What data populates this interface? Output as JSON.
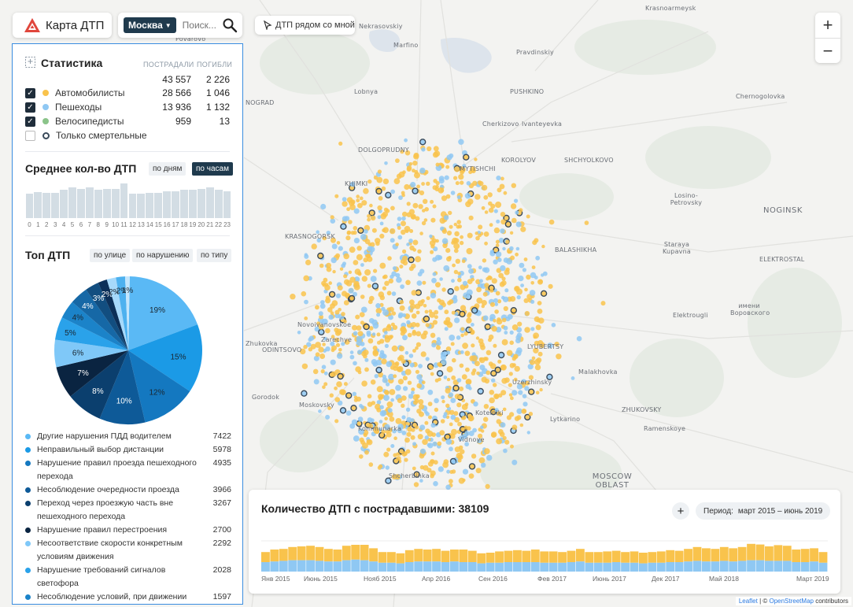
{
  "header": {
    "app_title": "Карта ДТП",
    "city": "Москва",
    "search_placeholder": "Поиск...",
    "nearby_label": "ДТП рядом со мной"
  },
  "zoom": {
    "in": "+",
    "out": "−"
  },
  "stats": {
    "title": "Статистика",
    "col_injured": "ПОСТРАДАЛИ",
    "col_killed": "ПОГИБЛИ",
    "total_injured": "43 557",
    "total_killed": "2 226",
    "rows": [
      {
        "label": "Автомобилисты",
        "injured": "28 566",
        "killed": "1 046",
        "color": "#f9c34c",
        "checked": true
      },
      {
        "label": "Пешеходы",
        "injured": "13 936",
        "killed": "1 132",
        "color": "#8fc8f3",
        "checked": true
      },
      {
        "label": "Велосипедисты",
        "injured": "959",
        "killed": "13",
        "color": "#8bc48a",
        "checked": true
      }
    ],
    "fatal_only": "Только смертельные"
  },
  "average": {
    "title": "Среднее кол-во ДТП",
    "by_days": "по дням",
    "by_hours": "по часам",
    "hours": [
      "0",
      "1",
      "2",
      "3",
      "4",
      "5",
      "6",
      "7",
      "8",
      "9",
      "10",
      "11",
      "12",
      "13",
      "14",
      "15",
      "16",
      "17",
      "18",
      "19",
      "20",
      "21",
      "22",
      "23"
    ],
    "values": [
      0.68,
      0.72,
      0.7,
      0.7,
      0.78,
      0.85,
      0.8,
      0.85,
      0.78,
      0.8,
      0.8,
      0.95,
      0.68,
      0.68,
      0.7,
      0.7,
      0.75,
      0.75,
      0.78,
      0.78,
      0.8,
      0.85,
      0.78,
      0.75
    ]
  },
  "top": {
    "title": "Топ ДТП",
    "by_street": "по улице",
    "by_violation": "по нарушению",
    "by_type": "по типу"
  },
  "chart_data": {
    "type": "pie",
    "slices": [
      {
        "label": "19%",
        "value": 19,
        "color": "#5ab9f5"
      },
      {
        "label": "15%",
        "value": 15,
        "color": "#1b9ae6"
      },
      {
        "label": "12%",
        "value": 12,
        "color": "#1478c0"
      },
      {
        "label": "10%",
        "value": 10,
        "color": "#0e5a98"
      },
      {
        "label": "8%",
        "value": 8,
        "color": "#0b3f6e"
      },
      {
        "label": "7%",
        "value": 7,
        "color": "#0a2441"
      },
      {
        "label": "6%",
        "value": 6,
        "color": "#7fc8f8"
      },
      {
        "label": "5%",
        "value": 5,
        "color": "#2aa2ea"
      },
      {
        "label": "4%",
        "value": 4,
        "color": "#1b83c9"
      },
      {
        "label": "4%",
        "value": 4,
        "color": "#1668a6"
      },
      {
        "label": "3%",
        "value": 3,
        "color": "#124e80"
      },
      {
        "label": "2%",
        "value": 2,
        "color": "#0c3059"
      },
      {
        "label": "2%",
        "value": 2,
        "color": "#a6d9fb"
      },
      {
        "label": "2%",
        "value": 2,
        "color": "#4db1ef"
      },
      {
        "label": "1%",
        "value": 1,
        "color": "#c3e6fd"
      }
    ]
  },
  "legend": [
    {
      "text": "Другие нарушения ПДД водителем",
      "value": "7422",
      "color": "#5ab9f5"
    },
    {
      "text": "Неправильный выбор дистанции",
      "value": "5978",
      "color": "#1b9ae6"
    },
    {
      "text": "Нарушение правил проезда пешеходного перехода",
      "value": "4935",
      "color": "#1478c0"
    },
    {
      "text": "Несоблюдение очередности проезда",
      "value": "3966",
      "color": "#0e5a98"
    },
    {
      "text": "Переход через проезжую часть вне пешеходного перехода",
      "value": "3267",
      "color": "#0b3f6e"
    },
    {
      "text": "Нарушение правил перестроения",
      "value": "2700",
      "color": "#0a2441"
    },
    {
      "text": "Несоответствие скорости конкретным условиям движения",
      "value": "2292",
      "color": "#7fc8f8"
    },
    {
      "text": "Нарушение требований сигналов светофора",
      "value": "2028",
      "color": "#2aa2ea"
    },
    {
      "text": "Несоблюдение условий, при движении",
      "value": "1597",
      "color": "#1b83c9"
    }
  ],
  "timeline": {
    "title": "Количество ДТП с пострадавшими: 38109",
    "plus": "+",
    "period_label": "Период:",
    "period_value": "март 2015 – июнь 2019",
    "ticks": [
      "Янв 2015",
      "Июнь 2015",
      "Нояб 2015",
      "Апр 2016",
      "Сен 2016",
      "Фев 2017",
      "Июнь 2017",
      "Дек 2017",
      "Май 2018",
      "Март 2019"
    ],
    "totals": [
      0.62,
      0.7,
      0.72,
      0.78,
      0.8,
      0.82,
      0.78,
      0.72,
      0.7,
      0.82,
      0.85,
      0.85,
      0.74,
      0.62,
      0.62,
      0.58,
      0.68,
      0.72,
      0.7,
      0.72,
      0.66,
      0.7,
      0.7,
      0.66,
      0.58,
      0.6,
      0.64,
      0.66,
      0.68,
      0.66,
      0.7,
      0.64,
      0.64,
      0.62,
      0.66,
      0.72,
      0.62,
      0.62,
      0.64,
      0.66,
      0.62,
      0.64,
      0.6,
      0.62,
      0.64,
      0.68,
      0.66,
      0.72,
      0.78,
      0.74,
      0.72,
      0.78,
      0.74,
      0.78,
      0.88,
      0.86,
      0.8,
      0.84,
      0.82,
      0.7,
      0.72,
      0.74,
      0.62
    ],
    "peds": [
      0.3,
      0.32,
      0.34,
      0.36,
      0.36,
      0.36,
      0.34,
      0.32,
      0.32,
      0.36,
      0.38,
      0.36,
      0.32,
      0.28,
      0.28,
      0.26,
      0.3,
      0.32,
      0.32,
      0.32,
      0.3,
      0.32,
      0.3,
      0.3,
      0.26,
      0.28,
      0.28,
      0.3,
      0.3,
      0.3,
      0.3,
      0.28,
      0.28,
      0.28,
      0.3,
      0.32,
      0.28,
      0.28,
      0.28,
      0.3,
      0.28,
      0.28,
      0.26,
      0.28,
      0.28,
      0.3,
      0.3,
      0.32,
      0.34,
      0.32,
      0.32,
      0.34,
      0.32,
      0.34,
      0.36,
      0.36,
      0.34,
      0.34,
      0.34,
      0.3,
      0.3,
      0.32,
      0.28
    ]
  },
  "map_labels": [
    {
      "text": "Krasnoarmeysk",
      "cls": "s"
    },
    {
      "text": "Nekrasovskiy",
      "cls": "s"
    },
    {
      "text": "Marfino",
      "cls": "s"
    },
    {
      "text": "Pravdinskiy",
      "cls": "s"
    },
    {
      "text": "Povarovo",
      "cls": "s"
    },
    {
      "text": "Lobnya",
      "cls": "s"
    },
    {
      "text": "PUSHKINO",
      "cls": "m"
    },
    {
      "text": "Chernogolovka",
      "cls": "s"
    },
    {
      "text": "Cherkizovo",
      "cls": "s"
    },
    {
      "text": "Ivanteyevka",
      "cls": "s"
    },
    {
      "text": "DOLGOPRUDNY",
      "cls": "m"
    },
    {
      "text": "KOROLYOV",
      "cls": "m"
    },
    {
      "text": "SHCHYOLKOVO",
      "cls": "m"
    },
    {
      "text": "MYTISHCHI",
      "cls": "m"
    },
    {
      "text": "KHIMKI",
      "cls": "m"
    },
    {
      "text": "Losino-Petrovsky",
      "cls": "s"
    },
    {
      "text": "NOGINSK",
      "cls": "b"
    },
    {
      "text": "KRASNOGORSK",
      "cls": "m"
    },
    {
      "text": "BALASHIKHA",
      "cls": "m"
    },
    {
      "text": "Staraya Kupavna",
      "cls": "s"
    },
    {
      "text": "ELEKTROSTAL",
      "cls": "m"
    },
    {
      "text": "имени Воровского",
      "cls": "s"
    },
    {
      "text": "Elektrougli",
      "cls": "s"
    },
    {
      "text": "Novoivanovskoe",
      "cls": "s"
    },
    {
      "text": "Zarechye",
      "cls": "s"
    },
    {
      "text": "ODINTSOVO",
      "cls": "m"
    },
    {
      "text": "LYUBERTSY",
      "cls": "m"
    },
    {
      "text": "Malakhovka",
      "cls": "s"
    },
    {
      "text": "Uzerzhinsky",
      "cls": "s"
    },
    {
      "text": "ZHUKOVSKY",
      "cls": "m"
    },
    {
      "text": "Kotelniki",
      "cls": "s"
    },
    {
      "text": "Lytkarino",
      "cls": "s"
    },
    {
      "text": "Ramenskoye",
      "cls": "m"
    },
    {
      "text": "Kommunarka",
      "cls": "s"
    },
    {
      "text": "Vidnoye",
      "cls": "s"
    },
    {
      "text": "MOSCOW OBLAST",
      "cls": "b"
    },
    {
      "text": "Shcherbinka",
      "cls": "s"
    },
    {
      "text": "Gorodok",
      "cls": "s"
    },
    {
      "text": "Moskovsky",
      "cls": "s"
    },
    {
      "text": "NOGRAD",
      "cls": "s"
    },
    {
      "text": "Zhukovka",
      "cls": "s"
    }
  ],
  "attribution": {
    "leaflet": "Leaflet",
    "sep": " | © ",
    "osm": "OpenStreetMap",
    "tail": " contributors"
  }
}
